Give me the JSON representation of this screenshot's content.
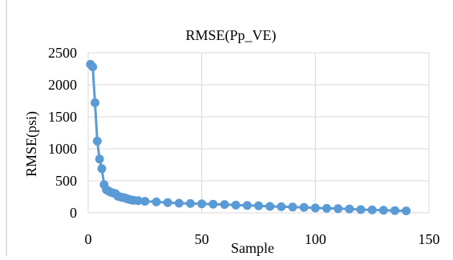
{
  "chart_data": {
    "type": "scatter",
    "title": "RMSE(Pp_VE)",
    "xlabel": "Sample",
    "ylabel": "RMSE(psi)",
    "xlim": [
      0,
      150
    ],
    "ylim": [
      0,
      2500
    ],
    "xticks": [
      "0",
      "50",
      "100",
      "150"
    ],
    "yticks": [
      "0",
      "500",
      "1000",
      "1500",
      "2000",
      "2500"
    ],
    "grid": true,
    "legend": "none",
    "series_color": "#5B9BD5",
    "grid_color": "#D9D9D9",
    "series": [
      {
        "x": [
          1,
          2,
          3,
          4,
          5,
          6,
          7,
          8,
          9,
          10,
          11,
          12,
          13,
          14,
          15,
          16,
          17,
          18,
          19,
          20,
          22,
          25,
          30,
          35,
          40,
          45,
          50,
          55,
          60,
          65,
          70,
          75,
          80,
          85,
          90,
          95,
          100,
          105,
          110,
          115,
          120,
          125,
          130,
          135,
          140
        ],
        "y": [
          2320,
          2280,
          1720,
          1120,
          840,
          690,
          440,
          360,
          340,
          320,
          310,
          300,
          260,
          250,
          240,
          235,
          220,
          210,
          200,
          195,
          190,
          180,
          170,
          160,
          150,
          145,
          140,
          135,
          130,
          120,
          115,
          110,
          100,
          95,
          90,
          85,
          75,
          70,
          65,
          60,
          50,
          45,
          40,
          35,
          30
        ]
      }
    ]
  }
}
